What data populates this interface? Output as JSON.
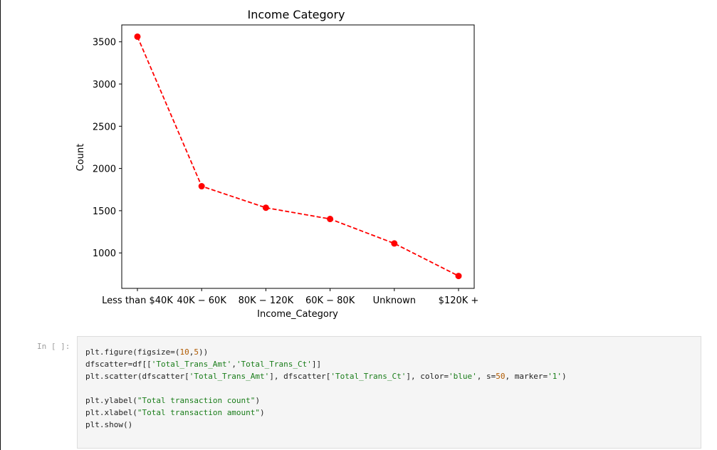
{
  "chart_data": {
    "type": "line",
    "title": "Income Category",
    "xlabel": "Income_Category",
    "ylabel": "Count",
    "categories": [
      "Less than $40K",
      "$40K - $60K",
      "$80K - $120K",
      "$60K - $80K",
      "Unknown",
      "$120K +"
    ],
    "tick_labels": [
      "Less than $40K",
      "40K − 60K",
      "80K − 120K",
      "60K − 80K",
      "Unknown",
      "$120K +"
    ],
    "values": [
      3561,
      1790,
      1535,
      1402,
      1112,
      727
    ],
    "yticks": [
      1000,
      1500,
      2000,
      2500,
      3000,
      3500
    ],
    "ylim": [
      580,
      3700
    ],
    "grid": false,
    "line_style": "dashed",
    "marker": "circle",
    "color": "#ff0000"
  },
  "cell": {
    "prompt": "In [ ]:",
    "code_lines": [
      [
        {
          "t": "plt.figure(figsize=("
        },
        {
          "t": "10",
          "c": "num"
        },
        {
          "t": ","
        },
        {
          "t": "5",
          "c": "num"
        },
        {
          "t": "))"
        }
      ],
      [
        {
          "t": "dfscatter=df[["
        },
        {
          "t": "'Total_Trans_Amt'",
          "c": "str"
        },
        {
          "t": ","
        },
        {
          "t": "'Total_Trans_Ct'",
          "c": "str"
        },
        {
          "t": "]]"
        }
      ],
      [
        {
          "t": "plt.scatter(dfscatter["
        },
        {
          "t": "'Total_Trans_Amt'",
          "c": "str"
        },
        {
          "t": "], dfscatter["
        },
        {
          "t": "'Total_Trans_Ct'",
          "c": "str"
        },
        {
          "t": "], color="
        },
        {
          "t": "'blue'",
          "c": "str"
        },
        {
          "t": ", s="
        },
        {
          "t": "50",
          "c": "num"
        },
        {
          "t": ", marker="
        },
        {
          "t": "'1'",
          "c": "str"
        },
        {
          "t": ")"
        }
      ],
      [],
      [
        {
          "t": "plt.ylabel("
        },
        {
          "t": "\"Total transaction count\"",
          "c": "str"
        },
        {
          "t": ")"
        }
      ],
      [
        {
          "t": "plt.xlabel("
        },
        {
          "t": "\"Total transaction amount\"",
          "c": "str"
        },
        {
          "t": ")"
        }
      ],
      [
        {
          "t": "plt.show()"
        }
      ]
    ]
  }
}
